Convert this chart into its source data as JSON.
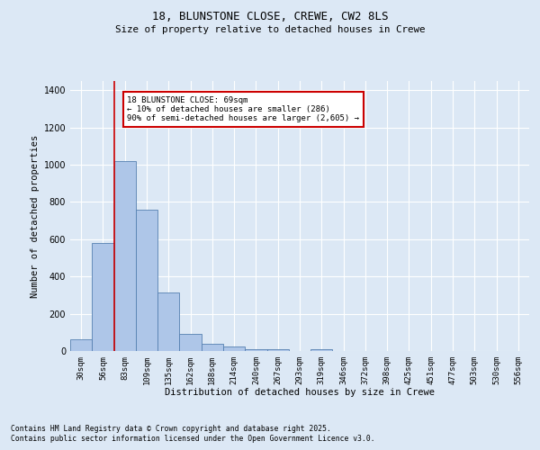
{
  "title1": "18, BLUNSTONE CLOSE, CREWE, CW2 8LS",
  "title2": "Size of property relative to detached houses in Crewe",
  "xlabel": "Distribution of detached houses by size in Crewe",
  "ylabel": "Number of detached properties",
  "bin_labels": [
    "30sqm",
    "56sqm",
    "83sqm",
    "109sqm",
    "135sqm",
    "162sqm",
    "188sqm",
    "214sqm",
    "240sqm",
    "267sqm",
    "293sqm",
    "319sqm",
    "346sqm",
    "372sqm",
    "398sqm",
    "425sqm",
    "451sqm",
    "477sqm",
    "503sqm",
    "530sqm",
    "556sqm"
  ],
  "bar_heights": [
    65,
    580,
    1020,
    760,
    315,
    90,
    38,
    22,
    12,
    12,
    0,
    12,
    0,
    0,
    0,
    0,
    0,
    0,
    0,
    0,
    0
  ],
  "bar_color": "#aec6e8",
  "bar_edge_color": "#5580b0",
  "red_line_color": "#cc0000",
  "red_line_x": 1.5,
  "annotation_text": "18 BLUNSTONE CLOSE: 69sqm\n← 10% of detached houses are smaller (286)\n90% of semi-detached houses are larger (2,605) →",
  "annotation_box_color": "#ffffff",
  "annotation_box_edge_color": "#cc0000",
  "ylim": [
    0,
    1450
  ],
  "yticks": [
    0,
    200,
    400,
    600,
    800,
    1000,
    1200,
    1400
  ],
  "background_color": "#dce8f5",
  "grid_color": "#ffffff",
  "footer1": "Contains HM Land Registry data © Crown copyright and database right 2025.",
  "footer2": "Contains public sector information licensed under the Open Government Licence v3.0."
}
